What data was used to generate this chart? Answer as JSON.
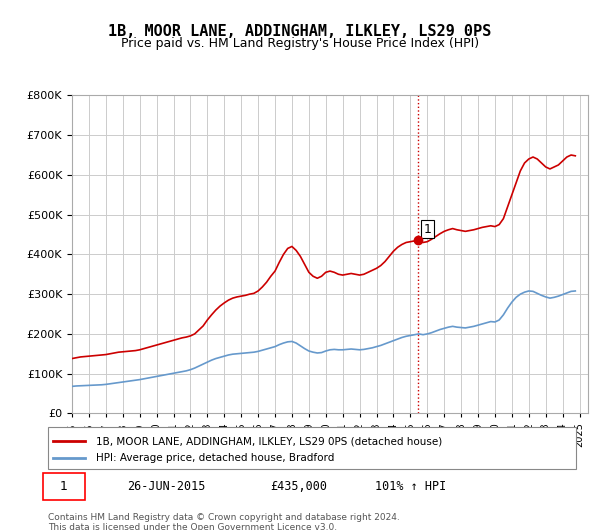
{
  "title": "1B, MOOR LANE, ADDINGHAM, ILKLEY, LS29 0PS",
  "subtitle": "Price paid vs. HM Land Registry's House Price Index (HPI)",
  "ylabel_prefix": "£",
  "ylim": [
    0,
    800000
  ],
  "yticks": [
    0,
    100000,
    200000,
    300000,
    400000,
    500000,
    600000,
    700000,
    800000
  ],
  "xlim_start": 1995.0,
  "xlim_end": 2025.5,
  "xticks": [
    1995,
    1996,
    1997,
    1998,
    1999,
    2000,
    2001,
    2002,
    2003,
    2004,
    2005,
    2006,
    2007,
    2008,
    2009,
    2010,
    2011,
    2012,
    2013,
    2014,
    2015,
    2016,
    2017,
    2018,
    2019,
    2020,
    2021,
    2022,
    2023,
    2024,
    2025
  ],
  "red_line_color": "#cc0000",
  "blue_line_color": "#6699cc",
  "vline_x": 2015.48,
  "vline_color": "#cc0000",
  "vline_style": ":",
  "marker_x": 2015.48,
  "marker_y": 435000,
  "annotation_label": "1",
  "legend_red_label": "1B, MOOR LANE, ADDINGHAM, ILKLEY, LS29 0PS (detached house)",
  "legend_blue_label": "HPI: Average price, detached house, Bradford",
  "footnote_line1": "Contains HM Land Registry data © Crown copyright and database right 2024.",
  "footnote_line2": "This data is licensed under the Open Government Licence v3.0.",
  "sale_label": "1",
  "sale_date": "26-JUN-2015",
  "sale_price": "£435,000",
  "sale_hpi": "101% ↑ HPI",
  "background_color": "#ffffff",
  "grid_color": "#cccccc",
  "red_data_x": [
    1995.0,
    1995.25,
    1995.5,
    1995.75,
    1996.0,
    1996.25,
    1996.5,
    1996.75,
    1997.0,
    1997.25,
    1997.5,
    1997.75,
    1998.0,
    1998.25,
    1998.5,
    1998.75,
    1999.0,
    1999.25,
    1999.5,
    1999.75,
    2000.0,
    2000.25,
    2000.5,
    2000.75,
    2001.0,
    2001.25,
    2001.5,
    2001.75,
    2002.0,
    2002.25,
    2002.5,
    2002.75,
    2003.0,
    2003.25,
    2003.5,
    2003.75,
    2004.0,
    2004.25,
    2004.5,
    2004.75,
    2005.0,
    2005.25,
    2005.5,
    2005.75,
    2006.0,
    2006.25,
    2006.5,
    2006.75,
    2007.0,
    2007.25,
    2007.5,
    2007.75,
    2008.0,
    2008.25,
    2008.5,
    2008.75,
    2009.0,
    2009.25,
    2009.5,
    2009.75,
    2010.0,
    2010.25,
    2010.5,
    2010.75,
    2011.0,
    2011.25,
    2011.5,
    2011.75,
    2012.0,
    2012.25,
    2012.5,
    2012.75,
    2013.0,
    2013.25,
    2013.5,
    2013.75,
    2014.0,
    2014.25,
    2014.5,
    2014.75,
    2015.0,
    2015.25,
    2015.5,
    2015.75,
    2016.0,
    2016.25,
    2016.5,
    2016.75,
    2017.0,
    2017.25,
    2017.5,
    2017.75,
    2018.0,
    2018.25,
    2018.5,
    2018.75,
    2019.0,
    2019.25,
    2019.5,
    2019.75,
    2020.0,
    2020.25,
    2020.5,
    2020.75,
    2021.0,
    2021.25,
    2021.5,
    2021.75,
    2022.0,
    2022.25,
    2022.5,
    2022.75,
    2023.0,
    2023.25,
    2023.5,
    2023.75,
    2024.0,
    2024.25,
    2024.5,
    2024.75
  ],
  "red_data_y": [
    138000,
    140000,
    142000,
    143000,
    144000,
    145000,
    146000,
    147000,
    148000,
    150000,
    152000,
    154000,
    155000,
    156000,
    157000,
    158000,
    160000,
    163000,
    166000,
    169000,
    172000,
    175000,
    178000,
    181000,
    184000,
    187000,
    190000,
    192000,
    195000,
    200000,
    210000,
    220000,
    235000,
    248000,
    260000,
    270000,
    278000,
    285000,
    290000,
    293000,
    295000,
    297000,
    300000,
    302000,
    308000,
    318000,
    330000,
    345000,
    358000,
    380000,
    400000,
    415000,
    420000,
    410000,
    395000,
    375000,
    355000,
    345000,
    340000,
    345000,
    355000,
    358000,
    355000,
    350000,
    348000,
    350000,
    352000,
    350000,
    348000,
    350000,
    355000,
    360000,
    365000,
    372000,
    382000,
    395000,
    408000,
    418000,
    425000,
    430000,
    432000,
    434000,
    436000,
    430000,
    432000,
    438000,
    445000,
    452000,
    458000,
    462000,
    465000,
    462000,
    460000,
    458000,
    460000,
    462000,
    465000,
    468000,
    470000,
    472000,
    470000,
    475000,
    490000,
    520000,
    550000,
    580000,
    610000,
    630000,
    640000,
    645000,
    640000,
    630000,
    620000,
    615000,
    620000,
    625000,
    635000,
    645000,
    650000,
    648000
  ],
  "blue_data_x": [
    1995.0,
    1995.25,
    1995.5,
    1995.75,
    1996.0,
    1996.25,
    1996.5,
    1996.75,
    1997.0,
    1997.25,
    1997.5,
    1997.75,
    1998.0,
    1998.25,
    1998.5,
    1998.75,
    1999.0,
    1999.25,
    1999.5,
    1999.75,
    2000.0,
    2000.25,
    2000.5,
    2000.75,
    2001.0,
    2001.25,
    2001.5,
    2001.75,
    2002.0,
    2002.25,
    2002.5,
    2002.75,
    2003.0,
    2003.25,
    2003.5,
    2003.75,
    2004.0,
    2004.25,
    2004.5,
    2004.75,
    2005.0,
    2005.25,
    2005.5,
    2005.75,
    2006.0,
    2006.25,
    2006.5,
    2006.75,
    2007.0,
    2007.25,
    2007.5,
    2007.75,
    2008.0,
    2008.25,
    2008.5,
    2008.75,
    2009.0,
    2009.25,
    2009.5,
    2009.75,
    2010.0,
    2010.25,
    2010.5,
    2010.75,
    2011.0,
    2011.25,
    2011.5,
    2011.75,
    2012.0,
    2012.25,
    2012.5,
    2012.75,
    2013.0,
    2013.25,
    2013.5,
    2013.75,
    2014.0,
    2014.25,
    2014.5,
    2014.75,
    2015.0,
    2015.25,
    2015.5,
    2015.75,
    2016.0,
    2016.25,
    2016.5,
    2016.75,
    2017.0,
    2017.25,
    2017.5,
    2017.75,
    2018.0,
    2018.25,
    2018.5,
    2018.75,
    2019.0,
    2019.25,
    2019.5,
    2019.75,
    2020.0,
    2020.25,
    2020.5,
    2020.75,
    2021.0,
    2021.25,
    2021.5,
    2021.75,
    2022.0,
    2022.25,
    2022.5,
    2022.75,
    2023.0,
    2023.25,
    2023.5,
    2023.75,
    2024.0,
    2024.25,
    2024.5,
    2024.75
  ],
  "blue_data_y": [
    68000,
    69000,
    69500,
    70000,
    70500,
    71000,
    71500,
    72000,
    73000,
    74500,
    76000,
    77500,
    79000,
    80500,
    82000,
    83500,
    85000,
    87000,
    89000,
    91000,
    93000,
    95000,
    97000,
    99000,
    101000,
    103000,
    105000,
    107000,
    110000,
    114000,
    119000,
    124000,
    129000,
    134000,
    138000,
    141000,
    144000,
    147000,
    149000,
    150000,
    151000,
    152000,
    153000,
    154000,
    156000,
    159000,
    162000,
    165000,
    168000,
    173000,
    177000,
    180000,
    181000,
    177000,
    170000,
    163000,
    157000,
    154000,
    152000,
    153000,
    157000,
    160000,
    161000,
    160000,
    160000,
    161000,
    162000,
    161000,
    160000,
    161000,
    163000,
    165000,
    168000,
    171000,
    175000,
    179000,
    183000,
    187000,
    191000,
    194000,
    196000,
    198000,
    200000,
    198000,
    200000,
    203000,
    207000,
    211000,
    214000,
    217000,
    219000,
    217000,
    216000,
    215000,
    217000,
    219000,
    222000,
    225000,
    228000,
    231000,
    230000,
    235000,
    248000,
    265000,
    280000,
    292000,
    300000,
    305000,
    308000,
    307000,
    302000,
    297000,
    293000,
    290000,
    292000,
    295000,
    299000,
    303000,
    307000,
    308000
  ]
}
